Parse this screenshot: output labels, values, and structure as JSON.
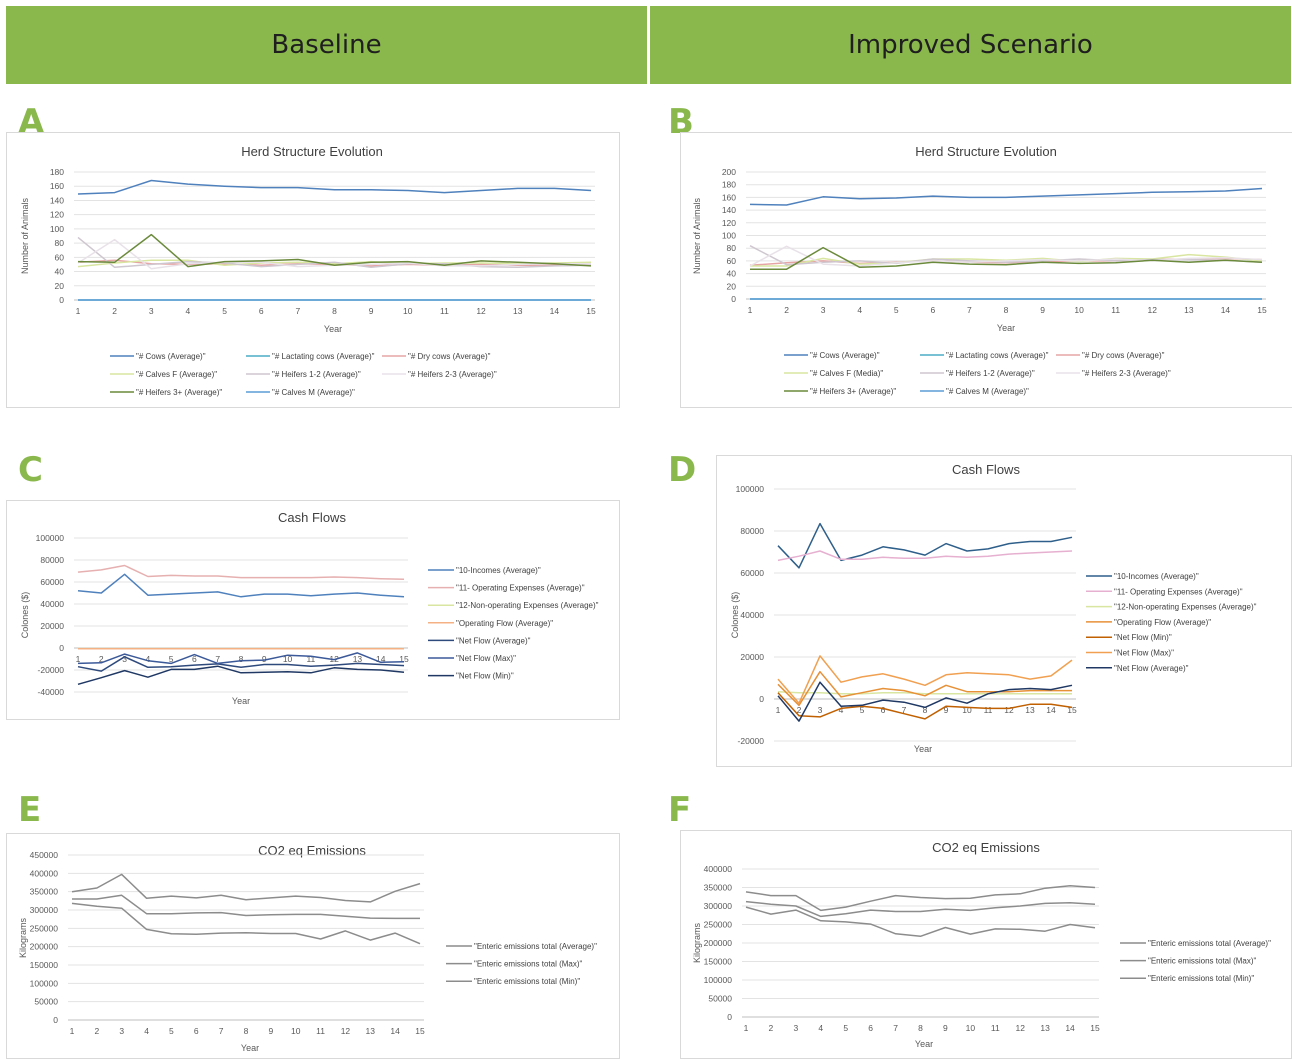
{
  "headers": {
    "left": "Baseline",
    "right": "Improved Scenario"
  },
  "panel_labels": [
    "A",
    "B",
    "C",
    "D",
    "E",
    "F"
  ],
  "colors": {
    "header_bg": "#8ab84d",
    "panel_label": "#8ab84d",
    "blue": "#4f81bd",
    "teal": "#4bacc6",
    "pink": "#e6a5a5",
    "light_green": "#d9e6a1",
    "light_gray": "#cfc7cf",
    "olive": "#6b8a3c",
    "navy": "#1f3864",
    "orange": "#e69138",
    "gray": "#8c8c8c"
  },
  "chart_data": [
    {
      "id": "A",
      "type": "line",
      "title": "Herd Structure Evolution",
      "xlabel": "Year",
      "ylabel": "Number of Animals",
      "x": [
        "1",
        "2",
        "3",
        "4",
        "5",
        "6",
        "7",
        "8",
        "9",
        "10",
        "11",
        "12",
        "13",
        "14",
        "15"
      ],
      "ylim": [
        0,
        180
      ],
      "yticks": [
        0,
        20,
        40,
        60,
        80,
        100,
        120,
        140,
        160,
        180
      ],
      "legend_position": "bottom",
      "series": [
        {
          "name": "\"# Cows (Average)\"",
          "color": "#4f81bd",
          "values": [
            149,
            151,
            168,
            163,
            160,
            158,
            158,
            155,
            155,
            154,
            151,
            154,
            157,
            157,
            154
          ]
        },
        {
          "name": "\"# Lactating cows (Average)\"",
          "color": "#4bacc6",
          "values": [
            0,
            0,
            0,
            0,
            0,
            0,
            0,
            0,
            0,
            0,
            0,
            0,
            0,
            0,
            0
          ]
        },
        {
          "name": "\"# Dry cows (Average)\"",
          "color": "#e6a5a5",
          "values": [
            53,
            56,
            51,
            50,
            51,
            49,
            51,
            50,
            48,
            50,
            49,
            50,
            49,
            49,
            50
          ]
        },
        {
          "name": "\"# Calves F (Average)\"",
          "color": "#d9e6a1",
          "values": [
            47,
            52,
            56,
            56,
            49,
            52,
            53,
            51,
            54,
            51,
            52,
            52,
            51,
            52,
            53
          ]
        },
        {
          "name": "\"# Heifers 1-2 (Average)\"",
          "color": "#cfc7cf",
          "values": [
            88,
            46,
            50,
            54,
            52,
            47,
            50,
            53,
            46,
            51,
            51,
            47,
            46,
            48,
            49
          ]
        },
        {
          "name": "\"# Heifers 2-3 (Average)\"",
          "color": "#e8e2e8",
          "values": [
            52,
            85,
            44,
            51,
            53,
            53,
            47,
            49,
            50,
            52,
            48,
            48,
            50,
            51,
            51
          ]
        },
        {
          "name": "\"# Heifers 3+ (Average)\"",
          "color": "#6b8a3c",
          "values": [
            54,
            53,
            92,
            47,
            54,
            55,
            57,
            49,
            53,
            54,
            49,
            55,
            53,
            51,
            48
          ]
        },
        {
          "name": "\"# Calves M (Average)\"",
          "color": "#5b9bd5",
          "values": [
            0,
            0,
            0,
            0,
            0,
            0,
            0,
            0,
            0,
            0,
            0,
            0,
            0,
            0,
            0
          ]
        }
      ]
    },
    {
      "id": "B",
      "type": "line",
      "title": "Herd Structure Evolution",
      "xlabel": "Year",
      "ylabel": "Number of Animals",
      "x": [
        "1",
        "2",
        "3",
        "4",
        "5",
        "6",
        "7",
        "8",
        "9",
        "10",
        "11",
        "12",
        "13",
        "14",
        "15"
      ],
      "ylim": [
        0,
        200
      ],
      "yticks": [
        0,
        20,
        40,
        60,
        80,
        100,
        120,
        140,
        160,
        180,
        200
      ],
      "legend_position": "bottom",
      "series": [
        {
          "name": "\"# Cows (Average)\"",
          "color": "#4f81bd",
          "values": [
            149,
            148,
            161,
            158,
            159,
            162,
            160,
            160,
            162,
            164,
            166,
            168,
            169,
            170,
            174
          ]
        },
        {
          "name": "\"# Lactating cows (Average)\"",
          "color": "#4bacc6",
          "values": [
            0,
            0,
            0,
            0,
            0,
            0,
            0,
            0,
            0,
            0,
            0,
            0,
            0,
            0,
            0
          ]
        },
        {
          "name": "\"# Dry cows (Average)\"",
          "color": "#e6a5a5",
          "values": [
            53,
            57,
            60,
            56,
            58,
            60,
            58,
            57,
            59,
            60,
            60,
            62,
            63,
            64,
            62
          ]
        },
        {
          "name": "\"# Calves F (Media)\"",
          "color": "#d9e6a1",
          "values": [
            52,
            52,
            64,
            55,
            57,
            63,
            63,
            61,
            64,
            59,
            64,
            63,
            70,
            66,
            60
          ]
        },
        {
          "name": "\"# Heifers 1-2 (Average)\"",
          "color": "#cfc7cf",
          "values": [
            84,
            54,
            58,
            60,
            56,
            63,
            60,
            58,
            60,
            63,
            60,
            62,
            62,
            61,
            58
          ]
        },
        {
          "name": "\"# Heifers 2-3 (Average)\"",
          "color": "#e8e2e8",
          "values": [
            52,
            83,
            55,
            52,
            57,
            60,
            58,
            60,
            62,
            60,
            63,
            60,
            64,
            65,
            62
          ]
        },
        {
          "name": "\"# Heifers 3+ (Average)\"",
          "color": "#6b8a3c",
          "values": [
            47,
            47,
            81,
            50,
            52,
            58,
            55,
            54,
            58,
            56,
            57,
            61,
            58,
            61,
            58
          ]
        },
        {
          "name": "\"# Calves M (Average)\"",
          "color": "#5b9bd5",
          "values": [
            0,
            0,
            0,
            0,
            0,
            0,
            0,
            0,
            0,
            0,
            0,
            0,
            0,
            0,
            0
          ]
        }
      ]
    },
    {
      "id": "C",
      "type": "line",
      "title": "Cash Flows",
      "xlabel": "Year",
      "ylabel": "Colones ($)",
      "x": [
        "1",
        "2",
        "3",
        "4",
        "5",
        "6",
        "7",
        "8",
        "9",
        "10",
        "11",
        "12",
        "13",
        "14",
        "15"
      ],
      "ylim": [
        -40000,
        100000
      ],
      "yticks": [
        -40000,
        -20000,
        0,
        20000,
        40000,
        60000,
        80000,
        100000
      ],
      "legend_position": "right",
      "x_labels_at_zero": true,
      "series": [
        {
          "name": "\"10-Incomes (Average)\"",
          "color": "#4f81bd",
          "values": [
            52000,
            50000,
            67000,
            48000,
            49000,
            50000,
            51000,
            46500,
            49000,
            49000,
            47500,
            49000,
            50000,
            48000,
            46500
          ]
        },
        {
          "name": "\"11- Operating Expenses (Average)\"",
          "color": "#e6b0b0",
          "values": [
            69000,
            71000,
            75000,
            65000,
            66000,
            65500,
            65500,
            64000,
            64000,
            64000,
            64000,
            64500,
            64000,
            63000,
            62500
          ]
        },
        {
          "name": "\"12-Non-operating Expenses (Average)\"",
          "color": "#d9e6a1",
          "values": [
            -500,
            -500,
            -500,
            -500,
            -500,
            -500,
            -500,
            -500,
            -500,
            -500,
            -500,
            -500,
            -500,
            -500,
            -500
          ]
        },
        {
          "name": "\"Operating Flow (Average)\"",
          "color": "#f4b183",
          "values": [
            -600,
            -600,
            -600,
            -600,
            -600,
            -600,
            -600,
            -600,
            -600,
            -600,
            -600,
            -600,
            -600,
            -600,
            -600
          ]
        },
        {
          "name": "\"Net Flow (Average)\"",
          "color": "#2e4a7d",
          "values": [
            -17000,
            -21000,
            -8000,
            -17500,
            -17000,
            -15500,
            -14500,
            -17500,
            -15000,
            -15000,
            -16500,
            -15500,
            -14000,
            -15000,
            -16000
          ]
        },
        {
          "name": "\"Net Flow (Max)\"",
          "color": "#3b5998",
          "values": [
            -14000,
            -13500,
            -5500,
            -11500,
            -14000,
            -6000,
            -14000,
            -11500,
            -11000,
            -6500,
            -7500,
            -10500,
            -4500,
            -13000,
            -12500
          ]
        },
        {
          "name": "\"Net Flow (Min)\"",
          "color": "#1f3864",
          "values": [
            -33000,
            -27000,
            -20500,
            -26500,
            -19500,
            -19500,
            -16500,
            -22500,
            -22000,
            -21500,
            -22500,
            -18000,
            -19500,
            -20000,
            -22000
          ]
        }
      ]
    },
    {
      "id": "D",
      "type": "line",
      "title": "Cash Flows",
      "xlabel": "Year",
      "ylabel": "Colones ($)",
      "x": [
        "1",
        "2",
        "3",
        "4",
        "5",
        "6",
        "7",
        "8",
        "9",
        "10",
        "11",
        "12",
        "13",
        "14",
        "15"
      ],
      "ylim": [
        -20000,
        100000
      ],
      "yticks": [
        -20000,
        0,
        20000,
        40000,
        60000,
        80000,
        100000
      ],
      "legend_position": "right",
      "x_labels_at_zero": true,
      "series": [
        {
          "name": "\"10-Incomes (Average)\"",
          "color": "#2e5f8a",
          "values": [
            73000,
            62500,
            83500,
            66000,
            68500,
            72500,
            71000,
            68500,
            74000,
            70500,
            71500,
            74000,
            75000,
            75000,
            77000
          ]
        },
        {
          "name": "\"11- Operating Expenses (Average)\"",
          "color": "#e6b0d0",
          "values": [
            66000,
            68000,
            70500,
            66500,
            66500,
            67500,
            67000,
            67000,
            68000,
            67500,
            68000,
            69000,
            69500,
            70000,
            70500
          ]
        },
        {
          "name": "\"12-Non-operating Expenses (Average)\"",
          "color": "#d9e6a1",
          "values": [
            3500,
            3000,
            3000,
            2500,
            2500,
            3000,
            3000,
            2500,
            2500,
            2500,
            2500,
            2500,
            2500,
            2500,
            2500
          ]
        },
        {
          "name": "\"Operating Flow (Average)\"",
          "color": "#e69138",
          "values": [
            7000,
            -3000,
            13000,
            1000,
            3000,
            5000,
            4000,
            1500,
            6500,
            3500,
            3500,
            3500,
            4000,
            4000,
            4000
          ]
        },
        {
          "name": "\"Net Flow (Min)\"",
          "color": "#c06000",
          "values": [
            3000,
            -8000,
            -8500,
            -4500,
            -3500,
            -4500,
            -7000,
            -9500,
            -3500,
            -4000,
            -4500,
            -4500,
            -2500,
            -2500,
            -4000
          ]
        },
        {
          "name": "\"Net Flow (Max)\"",
          "color": "#f0a050",
          "values": [
            9500,
            -2000,
            20500,
            8000,
            10500,
            12000,
            9500,
            6500,
            11500,
            12500,
            12000,
            11500,
            9500,
            11000,
            18500
          ]
        },
        {
          "name": "\"Net Flow (Average)\"",
          "color": "#1f3864",
          "values": [
            1500,
            -10500,
            8000,
            -3500,
            -3000,
            -500,
            -1500,
            -4000,
            500,
            -2000,
            2500,
            4500,
            5000,
            4500,
            6500
          ]
        }
      ]
    },
    {
      "id": "E",
      "type": "line",
      "title": "CO2 eq Emissions",
      "xlabel": "Year",
      "ylabel": "Kilograms",
      "x": [
        "1",
        "2",
        "3",
        "4",
        "5",
        "6",
        "7",
        "8",
        "9",
        "10",
        "11",
        "12",
        "13",
        "14",
        "15"
      ],
      "ylim": [
        0,
        450000
      ],
      "yticks": [
        0,
        50000,
        100000,
        150000,
        200000,
        250000,
        300000,
        350000,
        400000,
        450000
      ],
      "legend_position": "right",
      "series": [
        {
          "name": "\"Enteric emissions total (Average)\"",
          "color": "#8c8c8c",
          "values": [
            330000,
            330000,
            340000,
            290000,
            290000,
            292000,
            293000,
            285000,
            287000,
            288000,
            288000,
            283000,
            278000,
            277000,
            277000
          ]
        },
        {
          "name": "\"Enteric emissions total (Max)\"",
          "color": "#8c8c8c",
          "values": [
            350000,
            360000,
            397000,
            332000,
            338000,
            333000,
            340000,
            328000,
            333000,
            338000,
            334000,
            326000,
            322000,
            351000,
            372000
          ]
        },
        {
          "name": "\"Enteric emissions total (Min)\"",
          "color": "#8c8c8c",
          "values": [
            318000,
            310000,
            305000,
            247000,
            235000,
            234000,
            237000,
            238000,
            236000,
            236000,
            221000,
            243000,
            218000,
            237000,
            208000
          ]
        }
      ]
    },
    {
      "id": "F",
      "type": "line",
      "title": "CO2 eq Emissions",
      "xlabel": "Year",
      "ylabel": "Kilograms",
      "x": [
        "1",
        "2",
        "3",
        "4",
        "5",
        "6",
        "7",
        "8",
        "9",
        "10",
        "11",
        "12",
        "13",
        "14",
        "15"
      ],
      "ylim": [
        0,
        400000
      ],
      "yticks": [
        0,
        50000,
        100000,
        150000,
        200000,
        250000,
        300000,
        350000,
        400000
      ],
      "legend_position": "right",
      "series": [
        {
          "name": "\"Enteric emissions total (Average)\"",
          "color": "#8c8c8c",
          "values": [
            312000,
            305000,
            300000,
            272000,
            279000,
            289000,
            285000,
            285000,
            291000,
            288000,
            295000,
            300000,
            307000,
            309000,
            305000
          ]
        },
        {
          "name": "\"Enteric emissions total (Max)\"",
          "color": "#8c8c8c",
          "values": [
            338000,
            328000,
            328000,
            288000,
            297000,
            313000,
            328000,
            323000,
            320000,
            321000,
            330000,
            333000,
            348000,
            355000,
            350000
          ]
        },
        {
          "name": "\"Enteric emissions total (Min)\"",
          "color": "#8c8c8c",
          "values": [
            297000,
            278000,
            289000,
            260000,
            257000,
            251000,
            225000,
            218000,
            242000,
            224000,
            238000,
            237000,
            232000,
            250000,
            241000
          ]
        }
      ]
    }
  ]
}
